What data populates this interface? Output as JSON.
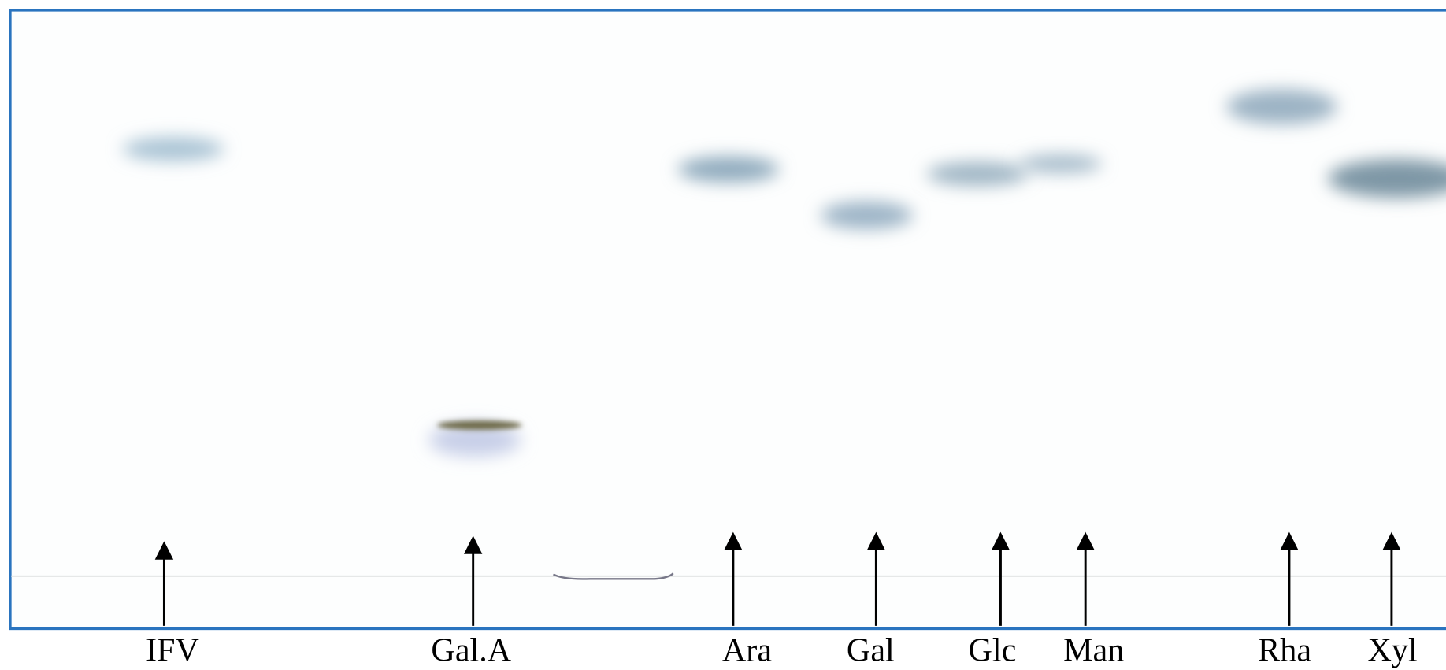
{
  "lanes": [
    {
      "label": "IFV"
    },
    {
      "label": "Gal.A"
    },
    {
      "label": "Ara"
    },
    {
      "label": "Gal"
    },
    {
      "label": "Glc"
    },
    {
      "label": "Man"
    },
    {
      "label": "Rha"
    },
    {
      "label": "Xyl"
    }
  ]
}
